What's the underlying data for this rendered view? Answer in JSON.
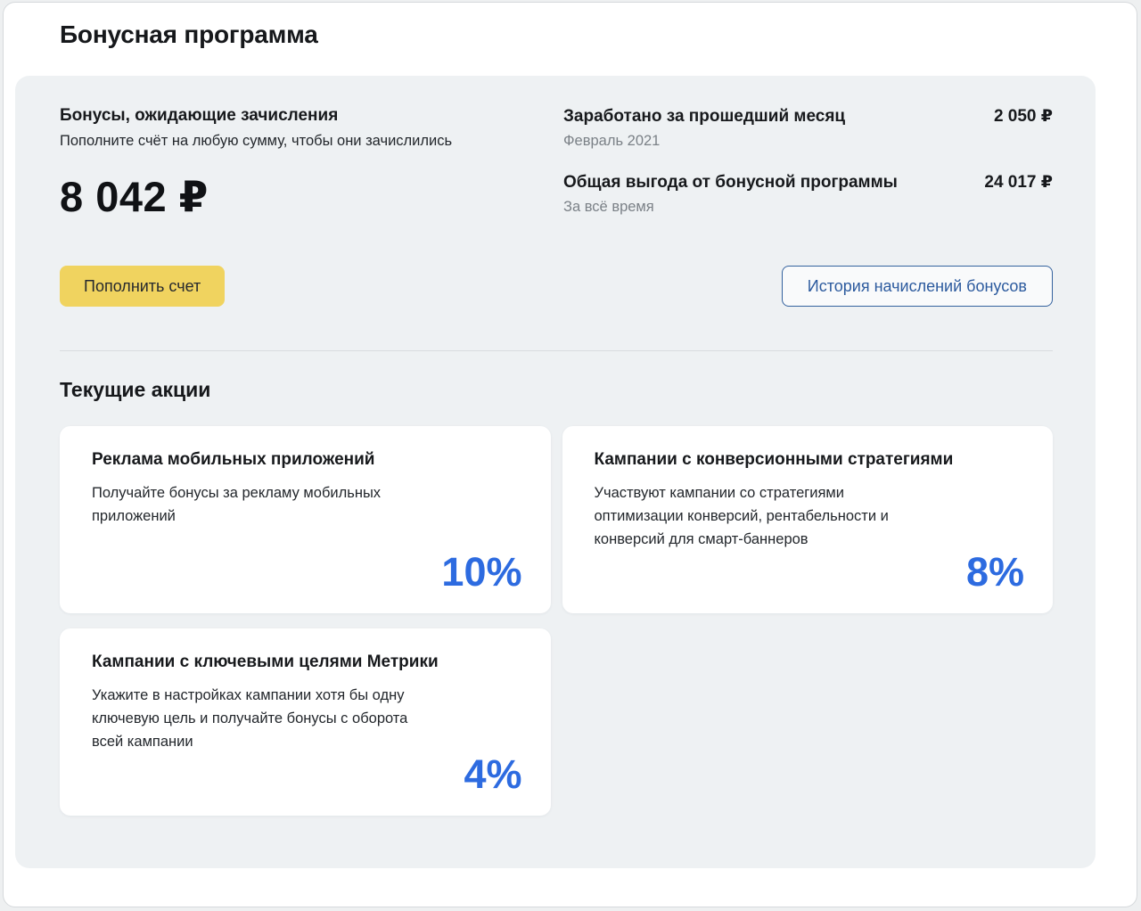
{
  "page": {
    "title": "Бонусная программа"
  },
  "panel": {
    "pending": {
      "title": "Бонусы, ожидающие зачисления",
      "subtitle": "Пополните счёт на любую сумму, чтобы они зачислились",
      "amount": "8 042 ₽"
    },
    "stats": [
      {
        "label": "Заработано за прошедший месяц",
        "value": "2 050 ₽",
        "period": "Февраль 2021"
      },
      {
        "label": "Общая выгода от бонусной программы",
        "value": "24 017 ₽",
        "period": "За всё время"
      }
    ],
    "topup_button": "Пополнить счет",
    "history_button": "История начислений бонусов",
    "promos": {
      "title": "Текущие акции",
      "cards": [
        {
          "title": "Реклама мобильных приложений",
          "description": "Получайте бонусы за рекламу мобильных приложений",
          "percent": "10%"
        },
        {
          "title": "Кампании с конверсионными стратегиями",
          "description": "Участвуют кампании со стратегиями оптимизации конверсий, рентабельности и конверсий для смарт-баннеров",
          "percent": "8%"
        },
        {
          "title": "Кампании с ключевыми целями Метрики",
          "description": "Укажите в настройках кампании хотя бы одну ключевую цель и получайте бонусы с оборота всей кампании",
          "percent": "4%"
        }
      ]
    }
  },
  "colors": {
    "accent_blue": "#2d6be0",
    "outline_button_blue": "#2c5a9e",
    "button_yellow": "#f0d35f",
    "panel_bg": "#eef1f3",
    "secondary_text": "#7b8187"
  }
}
